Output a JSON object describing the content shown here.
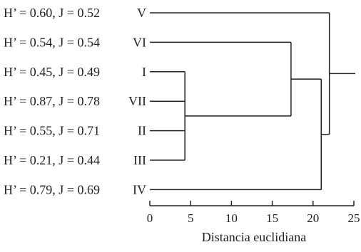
{
  "axis": {
    "title": "Distancia euclidiana",
    "ticks": [
      0,
      5,
      10,
      15,
      20,
      25
    ],
    "range": [
      0,
      25
    ]
  },
  "rows": [
    {
      "index": "H’ = 0.60, J = 0.52",
      "label": "V"
    },
    {
      "index": "H’ = 0.54, J = 0.54",
      "label": "VI"
    },
    {
      "index": "H’ = 0.45, J = 0.49",
      "label": "I"
    },
    {
      "index": "H’ = 0.87, J = 0.78",
      "label": "VII"
    },
    {
      "index": "H’ = 0.55, J = 0.71",
      "label": "II"
    },
    {
      "index": "H’ = 0.21, J = 0.44",
      "label": "III"
    },
    {
      "index": "H’ = 0.79, J = 0.69",
      "label": "IV"
    }
  ],
  "merges": [
    {
      "id": "c1",
      "children": [
        "I",
        "VII",
        "II",
        "III"
      ],
      "distance": 4.3
    },
    {
      "id": "c2",
      "children": [
        "VI",
        "c1"
      ],
      "distance": 17.3
    },
    {
      "id": "c3",
      "children": [
        "c2",
        "IV"
      ],
      "distance": 21.0
    },
    {
      "id": "c4",
      "children": [
        "c3"
      ],
      "distance": 22.0
    },
    {
      "id": "c5",
      "children": [
        "V",
        "c4"
      ],
      "distance": 22.0
    }
  ]
}
